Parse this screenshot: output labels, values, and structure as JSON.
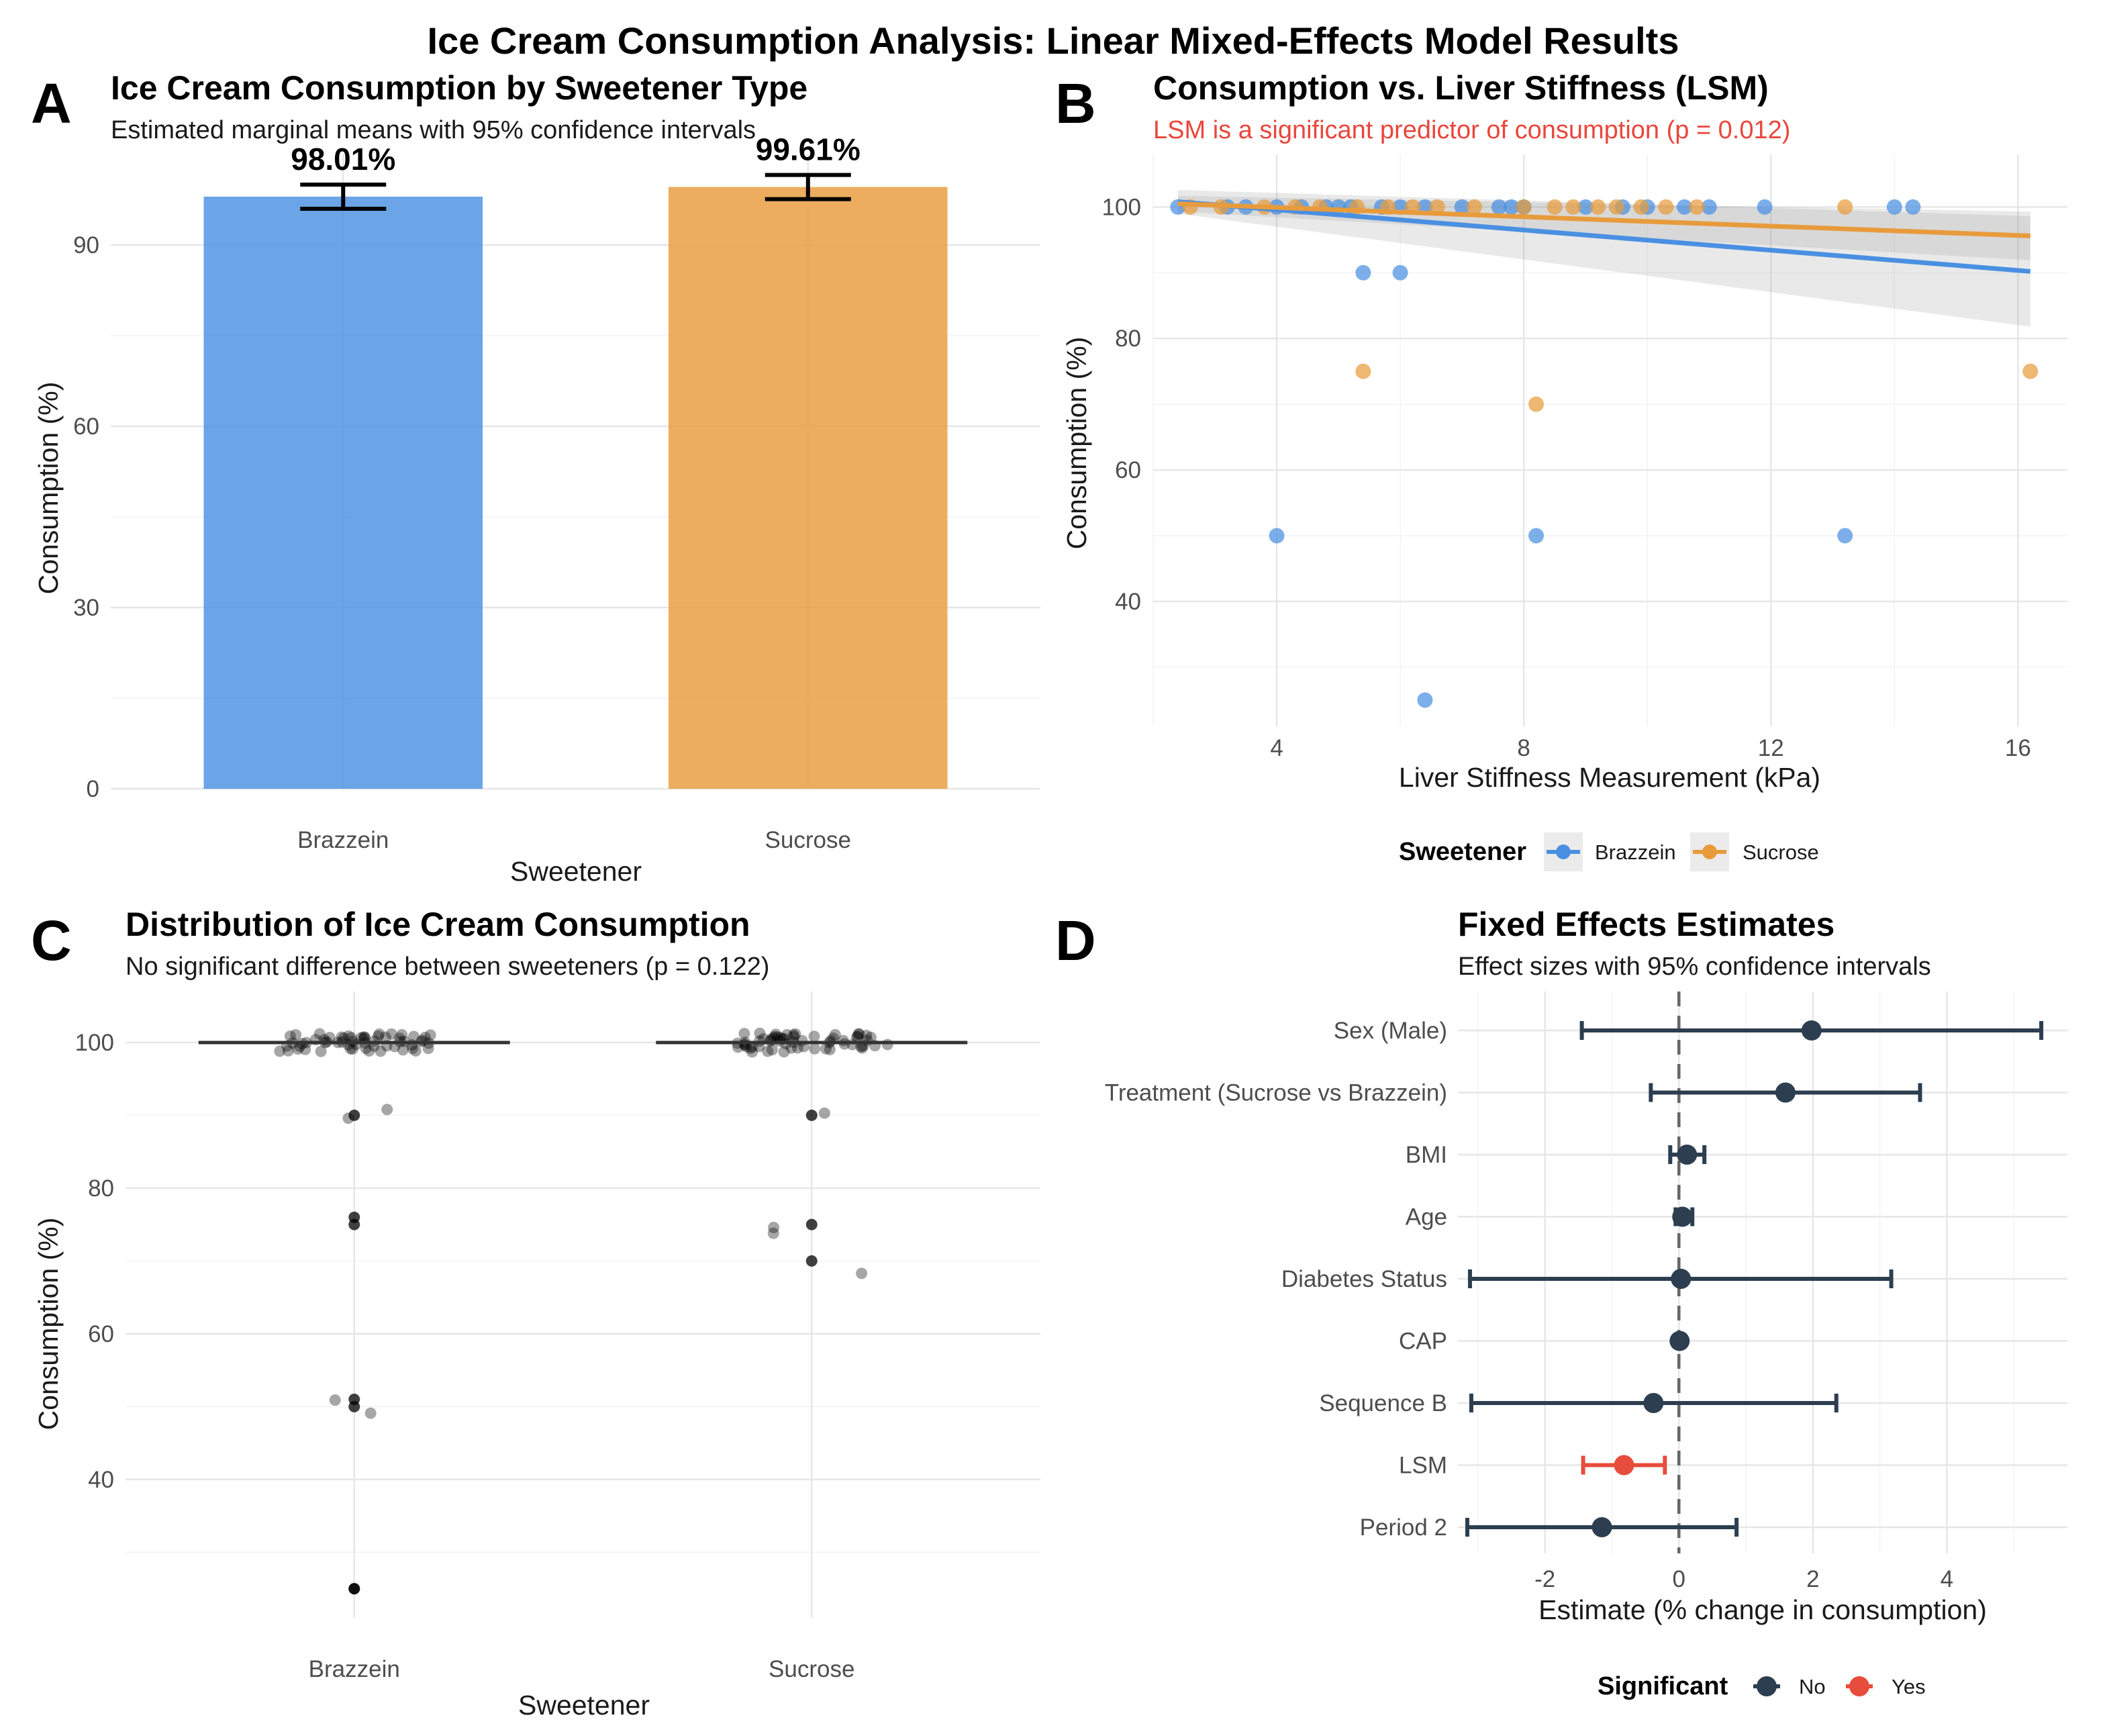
{
  "figure": {
    "title": "Ice Cream Consumption Analysis: Linear Mixed-Effects Model Results"
  },
  "colors": {
    "brazzein": "#4a90e2",
    "sucrose": "#e89b3c",
    "not_significant": "#2c3e50",
    "significant": "#e74c3c",
    "subtitle_highlight": "#e8473c"
  },
  "chart_data": [
    {
      "panel": "A",
      "type": "bar",
      "title": "Ice Cream Consumption by Sweetener Type",
      "subtitle": "Estimated marginal means with 95% confidence intervals",
      "xlabel": "Sweetener",
      "ylabel": "Consumption (%)",
      "categories": [
        "Brazzein",
        "Sucrose"
      ],
      "values": [
        98.01,
        99.61
      ],
      "ci_lower": [
        96.0,
        97.6
      ],
      "ci_upper": [
        100.0,
        101.6
      ],
      "value_labels": [
        "98.01%",
        "99.61%"
      ],
      "ylim": [
        0,
        105
      ],
      "yticks": [
        0,
        30,
        60,
        90
      ],
      "grid": true
    },
    {
      "panel": "B",
      "type": "scatter",
      "title": "Consumption vs. Liver Stiffness (LSM)",
      "subtitle": "LSM is a significant predictor of consumption (p = 0.012)",
      "xlabel": "Liver Stiffness Measurement (kPa)",
      "ylabel": "Consumption (%)",
      "xlim": [
        2,
        16.8
      ],
      "ylim": [
        21,
        108
      ],
      "xticks": [
        4,
        8,
        12,
        16
      ],
      "yticks": [
        40,
        60,
        80,
        100
      ],
      "legend_title": "Sweetener",
      "legend_position": "bottom",
      "grid": true,
      "series": [
        {
          "name": "Brazzein",
          "points": [
            [
              2.4,
              100
            ],
            [
              3.2,
              100
            ],
            [
              3.5,
              100
            ],
            [
              4.0,
              100
            ],
            [
              4.4,
              100
            ],
            [
              4.8,
              100
            ],
            [
              5.0,
              100
            ],
            [
              5.2,
              100
            ],
            [
              5.7,
              100
            ],
            [
              6.0,
              100
            ],
            [
              6.4,
              100
            ],
            [
              7.0,
              100
            ],
            [
              7.6,
              100
            ],
            [
              7.8,
              100
            ],
            [
              8.0,
              100
            ],
            [
              9.0,
              100
            ],
            [
              9.6,
              100
            ],
            [
              10.0,
              100
            ],
            [
              10.6,
              100
            ],
            [
              11.0,
              100
            ],
            [
              11.9,
              100
            ],
            [
              14.0,
              100
            ],
            [
              14.3,
              100
            ],
            [
              5.4,
              90
            ],
            [
              6.0,
              90
            ],
            [
              4.0,
              50
            ],
            [
              8.2,
              50
            ],
            [
              13.2,
              50
            ],
            [
              6.4,
              25
            ]
          ],
          "trend": {
            "x": [
              2.4,
              16.2
            ],
            "y": [
              100.8,
              90.2
            ],
            "ci_lower": [
              99.0,
              81.8
            ],
            "ci_upper": [
              102.6,
              98.6
            ]
          }
        },
        {
          "name": "Sucrose",
          "points": [
            [
              2.6,
              100
            ],
            [
              3.1,
              100
            ],
            [
              3.8,
              100
            ],
            [
              4.3,
              100
            ],
            [
              4.7,
              100
            ],
            [
              5.3,
              100
            ],
            [
              5.8,
              100
            ],
            [
              6.2,
              100
            ],
            [
              6.6,
              100
            ],
            [
              7.2,
              100
            ],
            [
              8.0,
              100
            ],
            [
              8.5,
              100
            ],
            [
              8.8,
              100
            ],
            [
              9.2,
              100
            ],
            [
              9.5,
              100
            ],
            [
              9.9,
              100
            ],
            [
              10.3,
              100
            ],
            [
              10.8,
              100
            ],
            [
              13.2,
              100
            ],
            [
              5.4,
              75
            ],
            [
              8.2,
              70
            ],
            [
              16.2,
              75
            ]
          ],
          "trend": {
            "x": [
              2.4,
              16.2
            ],
            "y": [
              100.5,
              95.6
            ],
            "ci_lower": [
              99.3,
              91.9
            ],
            "ci_upper": [
              101.7,
              99.3
            ]
          }
        }
      ]
    },
    {
      "panel": "C",
      "type": "scatter",
      "title": "Distribution of Ice Cream Consumption",
      "subtitle": "No significant difference between sweeteners (p = 0.122)",
      "xlabel": "Sweetener",
      "ylabel": "Consumption (%)",
      "categories": [
        "Brazzein",
        "Sucrose"
      ],
      "medians": [
        100,
        100
      ],
      "ylim": [
        21,
        107
      ],
      "yticks": [
        40,
        60,
        80,
        100
      ],
      "grid": true,
      "series": [
        {
          "name": "Brazzein",
          "values": [
            90,
            90.8,
            89.6,
            76,
            75,
            51,
            50,
            49.1,
            50.9,
            25,
            25
          ],
          "values_at_100_count": 60
        },
        {
          "name": "Sucrose",
          "values": [
            90.3,
            90,
            74.6,
            73.8,
            75,
            70,
            68.3
          ],
          "values_at_100_count": 60
        }
      ]
    },
    {
      "panel": "D",
      "type": "scatter",
      "title": "Fixed Effects Estimates",
      "subtitle": "Effect sizes with 95% confidence intervals",
      "xlabel": "Estimate (% change in consumption)",
      "ylabel": "",
      "xlim": [
        -3.3,
        5.8
      ],
      "xticks": [
        -2,
        0,
        2,
        4
      ],
      "reference_line": 0,
      "legend_title": "Significant",
      "legend_position": "bottom",
      "legend_entries": [
        "No",
        "Yes"
      ],
      "grid": true,
      "terms": [
        "Sex (Male)",
        "Treatment (Sucrose vs Brazzein)",
        "BMI",
        "Age",
        "Diabetes Status",
        "CAP",
        "Sequence B",
        "LSM",
        "Period 2"
      ],
      "estimates": [
        1.98,
        1.59,
        0.12,
        0.05,
        0.03,
        0.01,
        -0.38,
        -0.82,
        -1.15
      ],
      "ci_lower": [
        -1.45,
        -0.42,
        -0.13,
        -0.05,
        -3.12,
        -0.01,
        -3.1,
        -1.43,
        -3.16
      ],
      "ci_upper": [
        5.41,
        3.6,
        0.38,
        0.2,
        3.17,
        0.02,
        2.35,
        -0.21,
        0.86
      ],
      "significant": [
        "No",
        "No",
        "No",
        "No",
        "No",
        "No",
        "No",
        "Yes",
        "No"
      ]
    }
  ]
}
